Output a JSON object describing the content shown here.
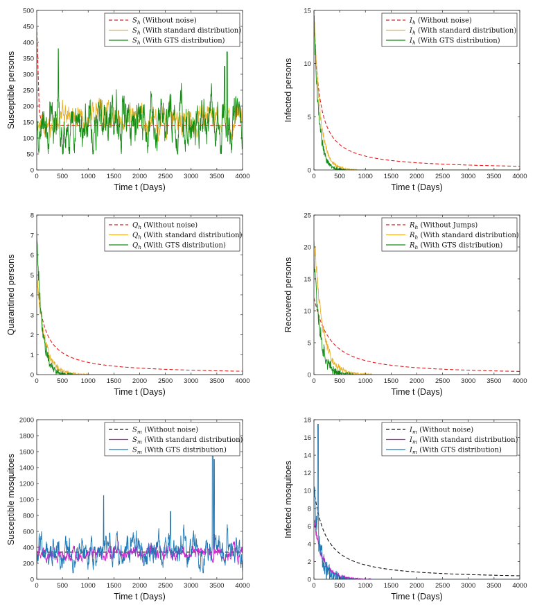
{
  "chart_data": [
    {
      "type": "line",
      "ylabel": "Susceptible persons",
      "xlabel": "Time t (Days)",
      "xlim": [
        0,
        4000
      ],
      "ylim": [
        0,
        500
      ],
      "xticks": [
        0,
        500,
        1000,
        1500,
        2000,
        2500,
        3000,
        3500,
        4000
      ],
      "yticks": [
        0,
        50,
        100,
        150,
        200,
        250,
        300,
        350,
        400,
        450,
        500
      ],
      "legend_position": "top-right",
      "grid": false,
      "series": [
        {
          "name": "S_h (Without noise)",
          "sym": "S",
          "sub": "h",
          "desc": " (Without noise)",
          "color": "#e41a1c",
          "dash": true,
          "kind": "stationary",
          "start": 450,
          "level": 140,
          "x": [],
          "y": []
        },
        {
          "name": "S_h (With standard distribution)",
          "sym": "S",
          "sub": "h",
          "desc": " (With standard distribution)",
          "color": "#e8b12c",
          "dash": false,
          "kind": "noisy",
          "start": 450,
          "level": 155,
          "amp": 35,
          "min": 80,
          "max": 260,
          "seed": 11,
          "x": [
            0,
            500,
            1000,
            1500,
            2000,
            2500,
            3000,
            3500,
            4000
          ],
          "y": [
            450,
            170,
            160,
            175,
            150,
            165,
            160,
            150,
            160
          ]
        },
        {
          "name": "S_h (With GTS distribution)",
          "sym": "S",
          "sub": "h",
          "desc": " (With GTS distribution)",
          "color": "#138a13",
          "dash": false,
          "kind": "noisy",
          "start": 450,
          "level": 145,
          "amp": 60,
          "min": 50,
          "max": 380,
          "seed": 23,
          "spikes": [
            [
              420,
              380
            ],
            [
              3700,
              370
            ],
            [
              3650,
              325
            ]
          ],
          "x": [
            0,
            420,
            1000,
            1500,
            2000,
            2500,
            3000,
            3650,
            4000
          ],
          "y": [
            450,
            380,
            140,
            150,
            140,
            145,
            135,
            325,
            260
          ]
        }
      ]
    },
    {
      "type": "line",
      "ylabel": "Infected persons",
      "xlabel": "Time t (Days)",
      "xlim": [
        0,
        4000
      ],
      "ylim": [
        0,
        15
      ],
      "xticks": [
        0,
        500,
        1000,
        1500,
        2000,
        2500,
        3000,
        3500,
        4000
      ],
      "yticks": [
        0,
        5,
        10,
        15
      ],
      "legend_position": "top-right",
      "grid": false,
      "series": [
        {
          "name": "I_h (Without noise)",
          "sym": "I",
          "sub": "h",
          "desc": " (Without noise)",
          "color": "#e41a1c",
          "dash": true,
          "kind": "decay",
          "start": 15,
          "scale": 190,
          "power": 1,
          "x": [
            0,
            500,
            1000,
            2000,
            4000
          ],
          "y": [
            15,
            1.1,
            0.7,
            0.35,
            0.1
          ]
        },
        {
          "name": "I_h (With standard distribution)",
          "sym": "I",
          "sub": "h",
          "desc": " (With standard distribution)",
          "color": "#e8b12c",
          "dash": false,
          "kind": "noisydecay",
          "start": 15,
          "tau": 120,
          "amp": 0.5,
          "seed": 5,
          "x": [
            0,
            100,
            300,
            500,
            1000
          ],
          "y": [
            15,
            3,
            0.6,
            0.2,
            0
          ]
        },
        {
          "name": "I_h (With GTS distribution)",
          "sym": "I",
          "sub": "h",
          "desc": " (With GTS distribution)",
          "color": "#138a13",
          "dash": false,
          "kind": "noisydecay",
          "start": 15,
          "tau": 90,
          "amp": 0.8,
          "seed": 9,
          "x": [
            0,
            60,
            200,
            400,
            1000
          ],
          "y": [
            15,
            4,
            1.2,
            0.1,
            0
          ]
        }
      ]
    },
    {
      "type": "line",
      "ylabel": "Quarantined  persons",
      "xlabel": "Time t (Days)",
      "xlim": [
        0,
        4000
      ],
      "ylim": [
        0,
        8
      ],
      "xticks": [
        0,
        500,
        1000,
        1500,
        2000,
        2500,
        3000,
        3500,
        4000
      ],
      "yticks": [
        0,
        1,
        2,
        3,
        4,
        5,
        6,
        7,
        8
      ],
      "legend_position": "top-right",
      "grid": false,
      "series": [
        {
          "name": "Q_h (Without noise)",
          "sym": "Q",
          "sub": "h",
          "desc": " (Without noise)",
          "color": "#e41a1c",
          "dash": true,
          "kind": "decay",
          "start": 5,
          "scale": 280,
          "power": 1,
          "x": [
            0,
            500,
            1000,
            2000,
            4000
          ],
          "y": [
            5,
            0.8,
            0.5,
            0.2,
            0.05
          ]
        },
        {
          "name": "Q_h (With standard distribution)",
          "sym": "Q",
          "sub": "h",
          "desc": " (With standard distribution)",
          "color": "#e8b12c",
          "dash": false,
          "kind": "noisydecay",
          "start": 5,
          "tau": 150,
          "amp": 0.3,
          "seed": 13,
          "x": [
            0,
            150,
            400,
            700,
            1000
          ],
          "y": [
            5,
            1.2,
            0.3,
            0.1,
            0
          ]
        },
        {
          "name": "Q_h (With GTS distribution)",
          "sym": "Q",
          "sub": "h",
          "desc": " (With GTS distribution)",
          "color": "#138a13",
          "dash": false,
          "kind": "noisydecay",
          "start": 7.2,
          "tau": 100,
          "amp": 0.5,
          "seed": 17,
          "x": [
            0,
            100,
            300,
            500,
            1000
          ],
          "y": [
            7.2,
            2,
            0.4,
            0.05,
            0
          ]
        }
      ]
    },
    {
      "type": "line",
      "ylabel": "Recovered persons",
      "xlabel": "Time t (Days)",
      "xlim": [
        0,
        4000
      ],
      "ylim": [
        0,
        25
      ],
      "xticks": [
        0,
        500,
        1000,
        1500,
        2000,
        2500,
        3000,
        3500,
        4000
      ],
      "yticks": [
        0,
        5,
        10,
        15,
        20,
        25
      ],
      "legend_position": "top-right",
      "grid": false,
      "series": [
        {
          "name": "R_h (Without Jumps)",
          "sym": "R",
          "sub": "h",
          "desc": " (Without Jumps)",
          "color": "#e41a1c",
          "dash": true,
          "kind": "decay",
          "start": 12,
          "scale": 500,
          "power": 1.3,
          "x": [
            0,
            500,
            1000,
            2000,
            4000
          ],
          "y": [
            12,
            5.2,
            3.2,
            1.2,
            0.2
          ]
        },
        {
          "name": "R_h (With standard distribution)",
          "sym": "R",
          "sub": "h",
          "desc": " (With standard distribution)",
          "color": "#e8b12c",
          "dash": false,
          "kind": "noisydecay",
          "start": 22,
          "tau": 160,
          "amp": 1.2,
          "seed": 31,
          "x": [
            0,
            100,
            300,
            600,
            1000
          ],
          "y": [
            22,
            8,
            2,
            1,
            0
          ]
        },
        {
          "name": "R_h (With GTS distribution)",
          "sym": "R",
          "sub": "h",
          "desc": " (With GTS distribution)",
          "color": "#138a13",
          "dash": false,
          "kind": "noisydecay",
          "start": 20,
          "tau": 110,
          "amp": 2.0,
          "seed": 37,
          "x": [
            0,
            80,
            250,
            500,
            1000
          ],
          "y": [
            20,
            12,
            3,
            0.2,
            0
          ]
        }
      ]
    },
    {
      "type": "line",
      "ylabel": "Susceptible mosquitoes",
      "xlabel": "Time t (Days)",
      "xlim": [
        0,
        4000
      ],
      "ylim": [
        0,
        2000
      ],
      "xticks": [
        0,
        500,
        1000,
        1500,
        2000,
        2500,
        3000,
        3500,
        4000
      ],
      "yticks": [
        0,
        200,
        400,
        600,
        800,
        1000,
        1200,
        1400,
        1600,
        1800,
        2000
      ],
      "legend_position": "top-right",
      "grid": false,
      "series": [
        {
          "name": "S_m (Without noise)",
          "sym": "S",
          "sub": "m",
          "desc": " (Without noise)",
          "color": "#111111",
          "dash": true,
          "kind": "stationary",
          "start": 340,
          "level": 340,
          "x": [],
          "y": []
        },
        {
          "name": "S_m (With standard distribution)",
          "sym": "S",
          "sub": "m",
          "desc": " (With standard distribution)",
          "color": "#c81fc8",
          "dash": false,
          "kind": "noisy",
          "start": 300,
          "level": 320,
          "amp": 70,
          "min": 150,
          "max": 600,
          "seed": 41,
          "spikes": [
            [
              3450,
              560
            ]
          ],
          "x": [
            0,
            500,
            1000,
            2000,
            3450,
            4000
          ],
          "y": [
            300,
            320,
            310,
            330,
            560,
            300
          ]
        },
        {
          "name": "S_m (With GTS distribution)",
          "sym": "S",
          "sub": "m",
          "desc": " (With GTS distribution)",
          "color": "#1f77b4",
          "dash": false,
          "kind": "noisy",
          "start": 400,
          "level": 340,
          "amp": 140,
          "min": 80,
          "max": 1900,
          "seed": 47,
          "spikes": [
            [
              1300,
              1050
            ],
            [
              3420,
              1900
            ],
            [
              3450,
              1500
            ],
            [
              2600,
              850
            ]
          ],
          "x": [
            0,
            1300,
            2000,
            2600,
            3420,
            4000
          ],
          "y": [
            400,
            1050,
            330,
            850,
            1900,
            350
          ]
        }
      ]
    },
    {
      "type": "line",
      "ylabel": "Infected mosquitoes",
      "xlabel": "Time t (Days)",
      "xlim": [
        0,
        4000
      ],
      "ylim": [
        0,
        18
      ],
      "xticks": [
        0,
        500,
        1000,
        1500,
        2000,
        2500,
        3000,
        3500,
        4000
      ],
      "yticks": [
        0,
        2,
        4,
        6,
        8,
        10,
        12,
        14,
        16,
        18
      ],
      "legend_position": "top-right",
      "grid": false,
      "series": [
        {
          "name": "I_m (Without noise)",
          "sym": "I",
          "sub": "m",
          "desc": " (Without noise)",
          "color": "#111111",
          "dash": true,
          "kind": "decay",
          "start": 10,
          "scale": 420,
          "power": 1.2,
          "x": [
            0,
            500,
            1000,
            2000,
            4000
          ],
          "y": [
            10,
            4.2,
            2.3,
            0.9,
            0.15
          ]
        },
        {
          "name": "I_m (With standard distribution)",
          "sym": "I",
          "sub": "m",
          "desc": " (With standard distribution)",
          "color": "#c81fc8",
          "dash": false,
          "kind": "noisydecay",
          "start": 7,
          "tau": 160,
          "amp": 0.6,
          "seed": 53,
          "x": [
            0,
            100,
            300,
            500,
            1000
          ],
          "y": [
            7,
            3,
            0.8,
            0.7,
            0
          ]
        },
        {
          "name": "I_m (With GTS distribution)",
          "sym": "I",
          "sub": "m",
          "desc": " (With GTS distribution)",
          "color": "#1f77b4",
          "dash": false,
          "kind": "noisydecay",
          "start": 10,
          "tau": 110,
          "amp": 2.0,
          "seed": 59,
          "spikes": [
            [
              80,
              17.5
            ]
          ],
          "x": [
            0,
            80,
            200,
            400,
            800
          ],
          "y": [
            10,
            17.5,
            4,
            0.6,
            0
          ]
        }
      ]
    }
  ]
}
